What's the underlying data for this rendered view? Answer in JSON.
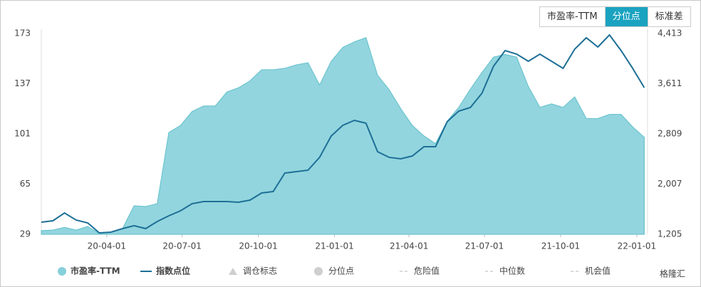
{
  "tabs": [
    "市盈率-TTM",
    "分位点",
    "标准差"
  ],
  "active_tab": 1,
  "chart_data": {
    "type": "area-line",
    "x": [
      "20-01-13",
      "20-01-27",
      "20-02-10",
      "20-02-24",
      "20-03-09",
      "20-03-23",
      "20-04-06",
      "20-04-20",
      "20-05-04",
      "20-05-18",
      "20-06-01",
      "20-06-15",
      "20-06-29",
      "20-07-13",
      "20-07-27",
      "20-08-10",
      "20-08-24",
      "20-09-07",
      "20-09-21",
      "20-10-05",
      "20-10-19",
      "20-11-02",
      "20-11-16",
      "20-11-30",
      "20-12-14",
      "20-12-28",
      "21-01-11",
      "21-01-25",
      "21-02-08",
      "21-02-22",
      "21-03-08",
      "21-03-22",
      "21-04-05",
      "21-04-19",
      "21-05-03",
      "21-05-17",
      "21-05-31",
      "21-06-14",
      "21-06-28",
      "21-07-12",
      "21-07-26",
      "21-08-09",
      "21-08-23",
      "21-09-06",
      "21-09-20",
      "21-10-04",
      "21-10-18",
      "21-11-01",
      "21-11-15",
      "21-11-29",
      "21-12-13",
      "21-12-27",
      "22-01-10"
    ],
    "xlim": [
      "20-01-13",
      "22-01-14"
    ],
    "xticks": [
      "20-04-01",
      "20-07-01",
      "20-10-01",
      "21-01-01",
      "21-04-01",
      "21-07-01",
      "21-10-01",
      "22-01-01"
    ],
    "ylim": [
      29,
      173
    ],
    "yticks": [
      29,
      65,
      101,
      137,
      173
    ],
    "y2lim": [
      1205,
      4413
    ],
    "y2ticks": [
      {
        "value": 1205,
        "label": "1,205"
      },
      {
        "value": 2007,
        "label": "2,007"
      },
      {
        "value": 2809,
        "label": "2,809"
      },
      {
        "value": 3611,
        "label": "3,611"
      },
      {
        "value": 4413,
        "label": "4,413"
      }
    ],
    "series": [
      {
        "name": "市盈率-TTM",
        "color": "#86d0da",
        "values": [
          31.6,
          32,
          34,
          32,
          34.6,
          29.5,
          30.5,
          33,
          49.4,
          48.9,
          51,
          102,
          107,
          117,
          121,
          121,
          131,
          134,
          139,
          147,
          147,
          148,
          150.5,
          152,
          136,
          153,
          163,
          167,
          170,
          143,
          132.6,
          119,
          107,
          99.5,
          94,
          110,
          120,
          133,
          145,
          156,
          158,
          156,
          135,
          120,
          122.5,
          120,
          127.5,
          112,
          112,
          115,
          115,
          106,
          98.5
        ]
      },
      {
        "name": "指数点位",
        "color": "#1d6f96",
        "axis": "y2",
        "values": [
          1398,
          1421,
          1546,
          1433,
          1387,
          1228,
          1239,
          1296,
          1342,
          1296,
          1410,
          1501,
          1580,
          1694,
          1728,
          1728,
          1728,
          1717,
          1751,
          1865,
          1888,
          2183,
          2206,
          2229,
          2434,
          2775,
          2946,
          3025,
          2980,
          2525,
          2434,
          2411,
          2456,
          2604,
          2604,
          3003,
          3173,
          3230,
          3457,
          3890,
          4140,
          4083,
          3969,
          4083,
          3969,
          3856,
          4163,
          4345,
          4197,
          4390,
          4140,
          3856,
          3548
        ]
      }
    ],
    "legend_extra": [
      {
        "name": "调仓标志",
        "color": "#cfcfcf"
      },
      {
        "name": "分位点",
        "color": "#cfcfcf"
      },
      {
        "name": "危险值",
        "color": "#cfcfcf"
      },
      {
        "name": "中位数",
        "color": "#cfcfcf"
      },
      {
        "name": "机会值",
        "color": "#cfcfcf"
      }
    ]
  },
  "watermark": "格隆汇"
}
